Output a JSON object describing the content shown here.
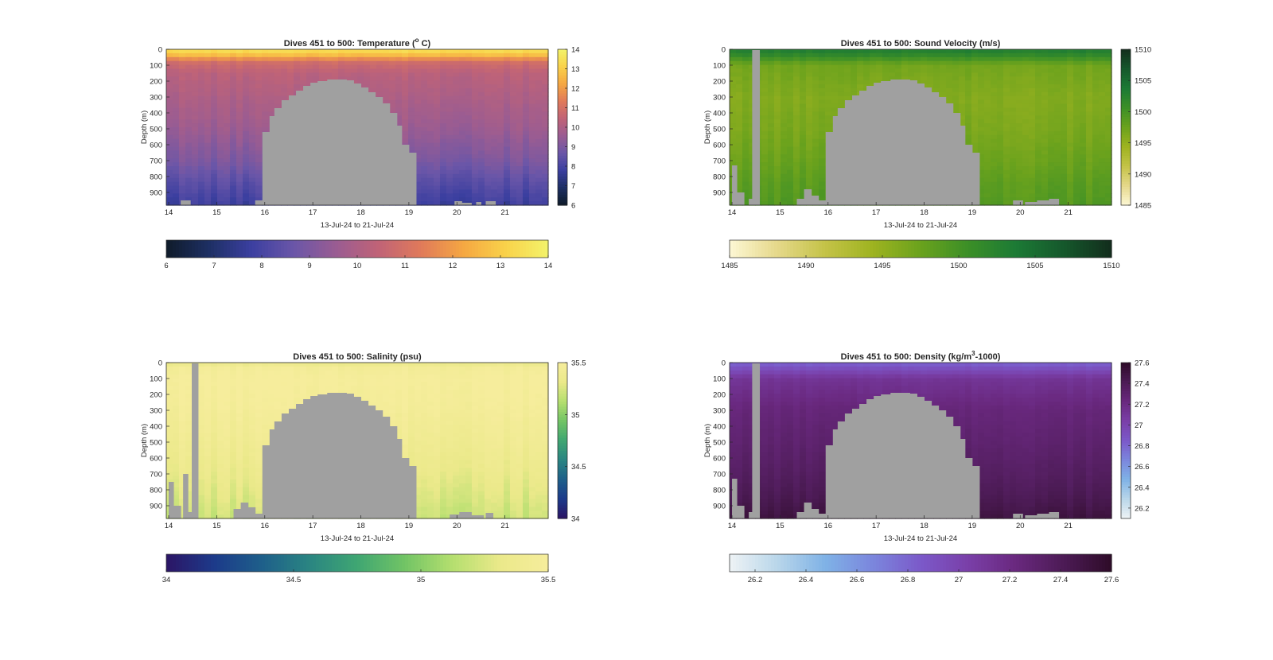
{
  "colors": {
    "missing": "#a0a0a0",
    "axis": "#262626",
    "temperature_cmap": [
      "#0f1b2a",
      "#1d2f63",
      "#3b3fa0",
      "#6a56a8",
      "#9a5c92",
      "#c06377",
      "#e07a5a",
      "#f5a742",
      "#f9d24a",
      "#f3f36a"
    ],
    "sound_velocity_cmap": [
      "#fdf7d4",
      "#e5d88a",
      "#c4c347",
      "#9eb320",
      "#6aa21d",
      "#3b8f27",
      "#1c7a35",
      "#15582c",
      "#122d1c"
    ],
    "salinity_cmap": [
      "#2b1565",
      "#1c3a8a",
      "#1e5f8a",
      "#2a8582",
      "#3fa672",
      "#72c465",
      "#b5df6f",
      "#ebe98a",
      "#f6ed9c"
    ],
    "density_cmap": [
      "#eef3f5",
      "#b9d6ea",
      "#7fb2e6",
      "#7b86dd",
      "#7b59c9",
      "#7a3fa8",
      "#69287e",
      "#4c1b55",
      "#2e0b28"
    ]
  },
  "chart_data": [
    {
      "type": "heatmap",
      "title_main": "Dives 451 to 500: Temperature (",
      "title_sup": "o",
      "title_tail": " C)",
      "xlabel": "13-Jul-24 to 21-Jul-24",
      "ylabel": "Depth (m)",
      "xlim": [
        13.95,
        21.9
      ],
      "ylim": [
        0,
        980
      ],
      "xticks": [
        14,
        15,
        16,
        17,
        18,
        19,
        20,
        21
      ],
      "yticks": [
        0,
        100,
        200,
        300,
        400,
        500,
        600,
        700,
        800,
        900
      ],
      "clim": [
        6,
        14
      ],
      "cticks_v": [
        6,
        7,
        8,
        9,
        10,
        11,
        12,
        13,
        14
      ],
      "cticks_h": [
        6,
        7,
        8,
        9,
        10,
        11,
        12,
        13,
        14
      ],
      "cmap": "temperature_cmap",
      "profile": [
        [
          0,
          13.6
        ],
        [
          40,
          12.6
        ],
        [
          80,
          10.9
        ],
        [
          150,
          10.3
        ],
        [
          300,
          10.0
        ],
        [
          500,
          9.6
        ],
        [
          700,
          9.0
        ],
        [
          850,
          8.3
        ],
        [
          980,
          7.8
        ]
      ],
      "lateral_variation": 0.25,
      "dome": [
        [
          15.8,
          950
        ],
        [
          15.95,
          520
        ],
        [
          16.1,
          420
        ],
        [
          16.2,
          370
        ],
        [
          16.35,
          320
        ],
        [
          16.5,
          290
        ],
        [
          16.65,
          260
        ],
        [
          16.8,
          230
        ],
        [
          16.95,
          210
        ],
        [
          17.1,
          200
        ],
        [
          17.3,
          190
        ],
        [
          17.5,
          190
        ],
        [
          17.7,
          195
        ],
        [
          17.85,
          215
        ],
        [
          18.0,
          240
        ],
        [
          18.15,
          270
        ],
        [
          18.3,
          300
        ],
        [
          18.45,
          340
        ],
        [
          18.6,
          400
        ],
        [
          18.75,
          480
        ],
        [
          18.85,
          600
        ],
        [
          19.0,
          650
        ]
      ],
      "dome_base": 980,
      "bottom_gaps": [
        [
          14.25,
          14.45,
          950
        ],
        [
          19.95,
          20.1,
          955
        ],
        [
          20.1,
          20.3,
          965
        ],
        [
          20.4,
          20.5,
          960
        ],
        [
          20.6,
          20.8,
          955
        ]
      ],
      "left_gaps": []
    },
    {
      "type": "heatmap",
      "title_main": "Dives 451 to 500: Sound Velocity (m/s)",
      "title_sup": "",
      "title_tail": "",
      "xlabel": "13-Jul-24 to 21-Jul-24",
      "ylabel": "Depth (m)",
      "xlim": [
        13.95,
        21.9
      ],
      "ylim": [
        0,
        980
      ],
      "xticks": [
        14,
        15,
        16,
        17,
        18,
        19,
        20,
        21
      ],
      "yticks": [
        0,
        100,
        200,
        300,
        400,
        500,
        600,
        700,
        800,
        900
      ],
      "clim": [
        1485,
        1510
      ],
      "cticks_v": [
        1485,
        1490,
        1495,
        1500,
        1505,
        1510
      ],
      "cticks_h": [
        1485,
        1490,
        1495,
        1500,
        1505,
        1510
      ],
      "cmap": "sound_velocity_cmap",
      "profile": [
        [
          0,
          1503.5
        ],
        [
          40,
          1501.5
        ],
        [
          100,
          1497.0
        ],
        [
          300,
          1496.0
        ],
        [
          500,
          1496.5
        ],
        [
          700,
          1497.5
        ],
        [
          850,
          1498.5
        ],
        [
          980,
          1499.0
        ]
      ],
      "lateral_variation": 0.8,
      "dome": [
        [
          15.8,
          950
        ],
        [
          15.95,
          520
        ],
        [
          16.1,
          420
        ],
        [
          16.2,
          370
        ],
        [
          16.35,
          320
        ],
        [
          16.5,
          290
        ],
        [
          16.65,
          260
        ],
        [
          16.8,
          230
        ],
        [
          16.95,
          210
        ],
        [
          17.1,
          200
        ],
        [
          17.3,
          190
        ],
        [
          17.5,
          190
        ],
        [
          17.7,
          195
        ],
        [
          17.85,
          215
        ],
        [
          18.0,
          240
        ],
        [
          18.15,
          270
        ],
        [
          18.3,
          300
        ],
        [
          18.45,
          340
        ],
        [
          18.6,
          400
        ],
        [
          18.75,
          480
        ],
        [
          18.85,
          600
        ],
        [
          19.0,
          650
        ]
      ],
      "dome_base": 980,
      "bottom_gaps": [
        [
          14.0,
          14.1,
          730
        ],
        [
          14.1,
          14.25,
          900
        ],
        [
          14.35,
          14.45,
          940
        ],
        [
          15.35,
          15.5,
          940
        ],
        [
          15.5,
          15.65,
          880
        ],
        [
          15.65,
          15.8,
          920
        ],
        [
          19.85,
          20.05,
          950
        ],
        [
          20.1,
          20.35,
          960
        ],
        [
          20.35,
          20.6,
          950
        ],
        [
          20.6,
          20.8,
          940
        ]
      ],
      "left_gaps": [
        [
          14.42,
          14.58,
          5
        ]
      ]
    },
    {
      "type": "heatmap",
      "title_main": "Dives 451 to 500: Salinity (psu)",
      "title_sup": "",
      "title_tail": "",
      "xlabel": "13-Jul-24 to 21-Jul-24",
      "ylabel": "Depth (m)",
      "xlim": [
        13.95,
        21.9
      ],
      "ylim": [
        0,
        980
      ],
      "xticks": [
        14,
        15,
        16,
        17,
        18,
        19,
        20,
        21
      ],
      "yticks": [
        0,
        100,
        200,
        300,
        400,
        500,
        600,
        700,
        800,
        900
      ],
      "clim": [
        34,
        35.5
      ],
      "cticks_v": [
        34,
        34.5,
        35,
        35.5
      ],
      "cticks_h": [
        34,
        34.5,
        35,
        35.5
      ],
      "cmap": "salinity_cmap",
      "profile": [
        [
          0,
          35.3
        ],
        [
          30,
          35.45
        ],
        [
          100,
          35.5
        ],
        [
          300,
          35.46
        ],
        [
          500,
          35.4
        ],
        [
          700,
          35.33
        ],
        [
          850,
          35.26
        ],
        [
          980,
          35.2
        ]
      ],
      "lateral_variation": 0.06,
      "dome": [
        [
          15.8,
          950
        ],
        [
          15.95,
          520
        ],
        [
          16.1,
          420
        ],
        [
          16.2,
          370
        ],
        [
          16.35,
          320
        ],
        [
          16.5,
          290
        ],
        [
          16.65,
          260
        ],
        [
          16.8,
          230
        ],
        [
          16.95,
          210
        ],
        [
          17.1,
          200
        ],
        [
          17.3,
          190
        ],
        [
          17.5,
          190
        ],
        [
          17.7,
          195
        ],
        [
          17.85,
          215
        ],
        [
          18.0,
          240
        ],
        [
          18.15,
          270
        ],
        [
          18.3,
          300
        ],
        [
          18.45,
          340
        ],
        [
          18.6,
          400
        ],
        [
          18.75,
          480
        ],
        [
          18.85,
          600
        ],
        [
          19.0,
          650
        ]
      ],
      "dome_base": 980,
      "bottom_gaps": [
        [
          14.0,
          14.1,
          750
        ],
        [
          14.1,
          14.25,
          900
        ],
        [
          14.3,
          14.4,
          700
        ],
        [
          14.4,
          14.5,
          940
        ],
        [
          15.35,
          15.5,
          920
        ],
        [
          15.5,
          15.65,
          880
        ],
        [
          15.65,
          15.8,
          910
        ],
        [
          19.85,
          20.05,
          955
        ],
        [
          20.05,
          20.3,
          940
        ],
        [
          20.3,
          20.55,
          960
        ],
        [
          20.6,
          20.75,
          945
        ]
      ],
      "left_gaps": [
        [
          14.48,
          14.62,
          5
        ]
      ]
    },
    {
      "type": "heatmap",
      "title_main": "Dives 451 to 500: Density (kg/m",
      "title_sup": "3",
      "title_tail": "-1000)",
      "xlabel": "13-Jul-24 to 21-Jul-24",
      "ylabel": "Depth (m)",
      "xlim": [
        13.95,
        21.9
      ],
      "ylim": [
        0,
        980
      ],
      "xticks": [
        14,
        15,
        16,
        17,
        18,
        19,
        20,
        21
      ],
      "yticks": [
        0,
        100,
        200,
        300,
        400,
        500,
        600,
        700,
        800,
        900
      ],
      "clim": [
        26.1,
        27.6
      ],
      "cticks_v": [
        26.2,
        26.4,
        26.6,
        26.8,
        27,
        27.2,
        27.4,
        27.6
      ],
      "cticks_h": [
        26.2,
        26.4,
        26.6,
        26.8,
        27,
        27.2,
        27.4,
        27.6
      ],
      "cmap": "density_cmap",
      "profile": [
        [
          0,
          26.8
        ],
        [
          50,
          26.95
        ],
        [
          100,
          27.12
        ],
        [
          300,
          27.25
        ],
        [
          500,
          27.3
        ],
        [
          700,
          27.36
        ],
        [
          850,
          27.42
        ],
        [
          980,
          27.5
        ]
      ],
      "lateral_variation": 0.03,
      "dome": [
        [
          15.8,
          950
        ],
        [
          15.95,
          520
        ],
        [
          16.1,
          420
        ],
        [
          16.2,
          370
        ],
        [
          16.35,
          320
        ],
        [
          16.5,
          290
        ],
        [
          16.65,
          260
        ],
        [
          16.8,
          230
        ],
        [
          16.95,
          210
        ],
        [
          17.1,
          200
        ],
        [
          17.3,
          190
        ],
        [
          17.5,
          190
        ],
        [
          17.7,
          195
        ],
        [
          17.85,
          215
        ],
        [
          18.0,
          240
        ],
        [
          18.15,
          270
        ],
        [
          18.3,
          300
        ],
        [
          18.45,
          340
        ],
        [
          18.6,
          400
        ],
        [
          18.75,
          480
        ],
        [
          18.85,
          600
        ],
        [
          19.0,
          650
        ]
      ],
      "dome_base": 980,
      "bottom_gaps": [
        [
          14.0,
          14.1,
          730
        ],
        [
          14.1,
          14.25,
          900
        ],
        [
          14.35,
          14.45,
          940
        ],
        [
          15.35,
          15.5,
          940
        ],
        [
          15.5,
          15.65,
          880
        ],
        [
          15.65,
          15.8,
          920
        ],
        [
          19.85,
          20.05,
          950
        ],
        [
          20.1,
          20.35,
          960
        ],
        [
          20.35,
          20.6,
          950
        ],
        [
          20.6,
          20.8,
          940
        ]
      ],
      "left_gaps": [
        [
          14.42,
          14.58,
          5
        ]
      ]
    }
  ]
}
